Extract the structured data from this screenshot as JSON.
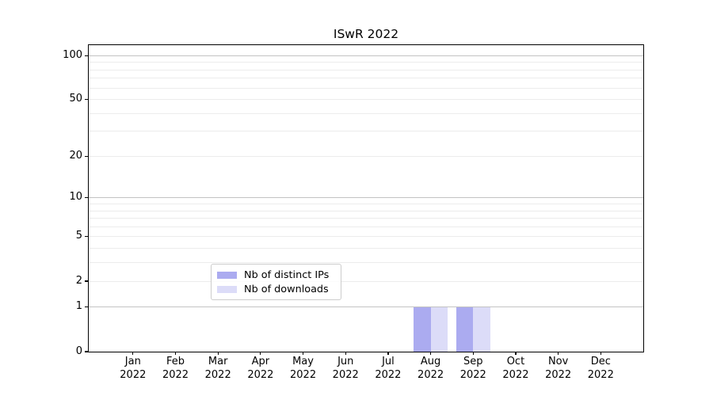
{
  "chart_data": {
    "type": "bar",
    "title": "ISwR 2022",
    "x_categories": [
      "Jan",
      "Feb",
      "Mar",
      "Apr",
      "May",
      "Jun",
      "Jul",
      "Aug",
      "Sep",
      "Oct",
      "Nov",
      "Dec"
    ],
    "x_year_label": "2022",
    "series": [
      {
        "name": "Nb of distinct IPs",
        "color": "#ababf0",
        "values": [
          0,
          0,
          0,
          0,
          0,
          0,
          0,
          1,
          1,
          0,
          0,
          0
        ]
      },
      {
        "name": "Nb of downloads",
        "color": "#dcdcf8",
        "values": [
          0,
          0,
          0,
          0,
          0,
          0,
          0,
          1,
          1,
          0,
          0,
          0
        ]
      }
    ],
    "yscale": "log1p",
    "ylim": [
      0,
      118
    ],
    "yticks": [
      {
        "value": 0,
        "label": "0"
      },
      {
        "value": 1,
        "label": "1"
      },
      {
        "value": 2,
        "label": "2"
      },
      {
        "value": 5,
        "label": "5"
      },
      {
        "value": 10,
        "label": "10"
      },
      {
        "value": 20,
        "label": "20"
      },
      {
        "value": 50,
        "label": "50"
      },
      {
        "value": 100,
        "label": "100"
      }
    ],
    "major_gridlines": [
      1,
      10,
      100
    ],
    "minor_gridlines": [
      2,
      3,
      4,
      5,
      6,
      7,
      8,
      9,
      20,
      30,
      40,
      50,
      60,
      70,
      80,
      90
    ],
    "legend": {
      "position": "lower center",
      "entries": [
        "Nb of distinct IPs",
        "Nb of downloads"
      ]
    },
    "colors": {
      "grid_major": "#c3c3c3",
      "grid_minor": "#ececec",
      "axis": "#000000",
      "background": "#ffffff"
    }
  }
}
